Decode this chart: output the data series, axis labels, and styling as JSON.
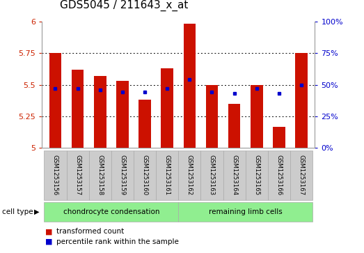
{
  "title": "GDS5045 / 211643_x_at",
  "samples": [
    "GSM1253156",
    "GSM1253157",
    "GSM1253158",
    "GSM1253159",
    "GSM1253160",
    "GSM1253161",
    "GSM1253162",
    "GSM1253163",
    "GSM1253164",
    "GSM1253165",
    "GSM1253166",
    "GSM1253167"
  ],
  "red_values": [
    5.75,
    5.62,
    5.57,
    5.53,
    5.38,
    5.63,
    5.98,
    5.5,
    5.35,
    5.5,
    5.17,
    5.75
  ],
  "blue_values": [
    5.47,
    5.47,
    5.46,
    5.44,
    5.44,
    5.47,
    5.54,
    5.44,
    5.43,
    5.47,
    5.43,
    5.5
  ],
  "ylim_left": [
    5.0,
    6.0
  ],
  "ylim_right": [
    0,
    100
  ],
  "right_ticks": [
    0,
    25,
    50,
    75,
    100
  ],
  "right_tick_labels": [
    "0%",
    "25%",
    "50%",
    "75%",
    "100%"
  ],
  "left_ticks": [
    5.0,
    5.25,
    5.5,
    5.75,
    6.0
  ],
  "left_tick_labels": [
    "5",
    "5.25",
    "5.5",
    "5.75",
    "6"
  ],
  "bar_color": "#CC1100",
  "dot_color": "#0000CC",
  "sample_bg": "#CCCCCC",
  "chondro_color": "#90EE90",
  "remaining_color": "#90EE90",
  "title_fontsize": 11,
  "grid_yticks": [
    5.25,
    5.5,
    5.75
  ]
}
